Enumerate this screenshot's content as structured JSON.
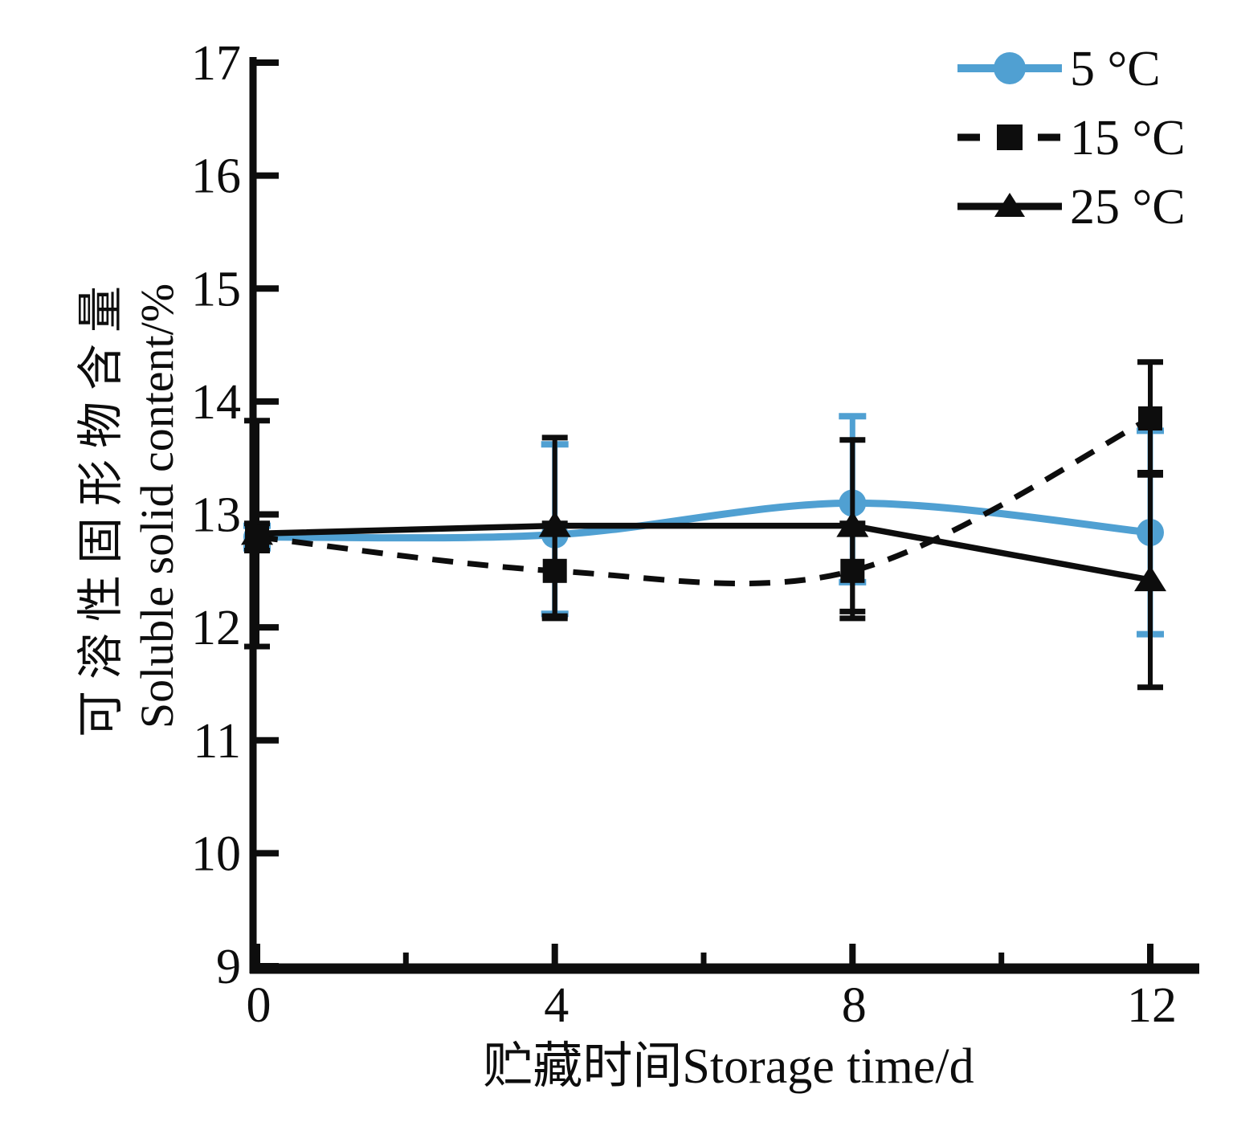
{
  "figure": {
    "background": "#ffffff",
    "ink_color": "#0d0d0d",
    "accent_blue": "#50a0d2"
  },
  "chart_data": {
    "type": "line",
    "title": "",
    "xlabel": "贮藏时间Storage time/d",
    "ylabel_lines": [
      "可溶性固形物含量",
      "Soluble solid content/%"
    ],
    "x": [
      0,
      4,
      8,
      12
    ],
    "xlim": [
      0,
      12.65
    ],
    "ylim": [
      9,
      17
    ],
    "x_major_ticks": [
      0,
      4,
      8,
      12
    ],
    "x_minor_ticks": [
      2,
      6,
      10
    ],
    "y_major_ticks": [
      9,
      10,
      11,
      12,
      13,
      14,
      15,
      16,
      17
    ],
    "grid": false,
    "legend_position": "top-right",
    "series": [
      {
        "name": "5 °C",
        "key": "5c",
        "color": "#50a0d2",
        "marker": "circle",
        "line_style": "solid",
        "smooth": true,
        "values": [
          12.8,
          12.82,
          13.1,
          12.84
        ],
        "err_up": [
          0.1,
          0.8,
          0.77,
          0.9
        ],
        "err_down": [
          0.1,
          0.7,
          0.7,
          0.9
        ]
      },
      {
        "name": "15 °C",
        "key": "15c",
        "color": "#0d0d0d",
        "marker": "square",
        "line_style": "dashed",
        "smooth": true,
        "values": [
          12.8,
          12.5,
          12.5,
          13.85
        ],
        "err_up": [
          0.12,
          0.42,
          0.42,
          0.5
        ],
        "err_down": [
          0.12,
          0.42,
          0.42,
          0.5
        ]
      },
      {
        "name": "25 °C",
        "key": "25c",
        "color": "#0d0d0d",
        "marker": "triangle",
        "line_style": "solid",
        "smooth": false,
        "values": [
          12.83,
          12.9,
          12.9,
          12.42
        ],
        "err_up": [
          1.0,
          0.78,
          0.76,
          0.95
        ],
        "err_down": [
          1.0,
          0.8,
          0.76,
          0.95
        ]
      }
    ]
  }
}
